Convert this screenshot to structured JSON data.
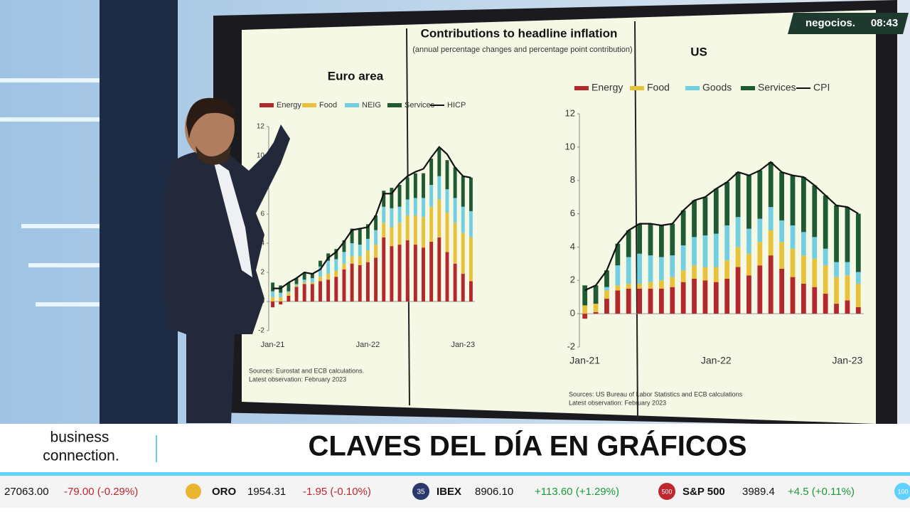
{
  "channel": {
    "brand": "negocios.",
    "time": "08:43"
  },
  "screen": {
    "title": "Contributions to headline inflation",
    "subtitle": "(annual percentage changes and percentage point contribution)"
  },
  "chart_data": [
    {
      "type": "combo",
      "title": "Euro area",
      "categories": [
        "Jan-21",
        null,
        null,
        null,
        null,
        null,
        null,
        null,
        null,
        null,
        null,
        null,
        "Jan-22",
        null,
        null,
        null,
        null,
        null,
        null,
        null,
        null,
        null,
        null,
        null,
        "Jan-23",
        null
      ],
      "series": [
        {
          "name": "Energy",
          "kind": "bar",
          "color": "#b3282d",
          "values": [
            -0.4,
            -0.2,
            0.4,
            1.0,
            1.2,
            1.2,
            1.4,
            1.5,
            1.7,
            2.2,
            2.6,
            2.5,
            2.7,
            3.0,
            4.4,
            3.8,
            3.9,
            4.2,
            3.9,
            3.7,
            4.1,
            4.4,
            3.4,
            2.6,
            1.9,
            1.4
          ]
        },
        {
          "name": "Food",
          "kind": "bar",
          "color": "#e9c23c",
          "values": [
            0.3,
            0.3,
            0.2,
            0.1,
            0.1,
            0.1,
            0.3,
            0.4,
            0.4,
            0.4,
            0.5,
            0.6,
            0.8,
            0.9,
            1.0,
            1.3,
            1.5,
            1.7,
            2.0,
            2.1,
            2.4,
            2.6,
            2.7,
            2.8,
            2.8,
            3.0
          ]
        },
        {
          "name": "NEIG",
          "kind": "bar",
          "color": "#72cfe2",
          "values": [
            0.4,
            0.3,
            0.1,
            0.1,
            0.2,
            0.3,
            0.7,
            0.9,
            0.8,
            0.8,
            0.9,
            0.8,
            0.8,
            1.0,
            1.1,
            1.3,
            1.1,
            1.1,
            1.2,
            1.3,
            1.5,
            1.6,
            1.6,
            1.7,
            1.8,
            1.8
          ]
        },
        {
          "name": "Services",
          "kind": "bar",
          "color": "#1f5a34",
          "values": [
            0.6,
            0.5,
            0.6,
            0.4,
            0.5,
            0.3,
            0.4,
            0.5,
            0.7,
            0.8,
            1.0,
            1.1,
            1.0,
            1.0,
            1.1,
            1.4,
            1.5,
            1.5,
            1.7,
            1.7,
            1.8,
            1.9,
            2.0,
            2.1,
            2.1,
            2.3
          ]
        },
        {
          "name": "HICP",
          "kind": "line",
          "color": "#111111",
          "values": [
            0.9,
            0.9,
            1.3,
            1.6,
            2.0,
            1.9,
            2.2,
            3.0,
            3.4,
            4.1,
            4.9,
            5.0,
            5.1,
            5.9,
            7.4,
            7.4,
            8.1,
            8.6,
            8.9,
            9.1,
            9.9,
            10.6,
            10.1,
            9.2,
            8.6,
            8.5
          ]
        }
      ],
      "ylim": [
        -2,
        12
      ],
      "yticks": [
        -2,
        0,
        2,
        4,
        6,
        8,
        10,
        12
      ],
      "notes": [
        "Sources: Eurostat and ECB calculations.",
        "Latest observation: February 2023"
      ]
    },
    {
      "type": "combo",
      "title": "US",
      "categories": [
        "Jan-21",
        null,
        null,
        null,
        null,
        null,
        null,
        null,
        null,
        null,
        null,
        null,
        "Jan-22",
        null,
        null,
        null,
        null,
        null,
        null,
        null,
        null,
        null,
        null,
        null,
        "Jan-23",
        null
      ],
      "series": [
        {
          "name": "Energy",
          "kind": "bar",
          "color": "#b3282d",
          "values": [
            -0.3,
            0.1,
            0.9,
            1.4,
            1.5,
            1.5,
            1.5,
            1.5,
            1.6,
            1.9,
            2.1,
            2.0,
            1.9,
            2.1,
            2.8,
            2.3,
            2.9,
            3.5,
            2.7,
            2.2,
            1.8,
            1.6,
            1.2,
            0.6,
            0.8,
            0.4
          ]
        },
        {
          "name": "Food",
          "kind": "bar",
          "color": "#e9c23c",
          "values": [
            0.5,
            0.5,
            0.5,
            0.3,
            0.3,
            0.3,
            0.4,
            0.5,
            0.6,
            0.7,
            0.8,
            0.8,
            0.9,
            1.1,
            1.2,
            1.3,
            1.4,
            1.5,
            1.6,
            1.7,
            1.7,
            1.7,
            1.7,
            1.6,
            1.5,
            1.4
          ]
        },
        {
          "name": "Goods",
          "kind": "bar",
          "color": "#72cfe2",
          "values": [
            0.0,
            0.0,
            0.2,
            1.2,
            1.6,
            1.8,
            1.6,
            1.4,
            1.3,
            1.5,
            1.7,
            1.9,
            2.0,
            2.1,
            1.8,
            1.5,
            1.4,
            1.4,
            1.3,
            1.4,
            1.4,
            1.3,
            1.0,
            0.9,
            0.8,
            0.7
          ]
        },
        {
          "name": "Services",
          "kind": "bar",
          "color": "#1f5a34",
          "values": [
            1.2,
            1.1,
            1.0,
            1.3,
            1.6,
            1.8,
            1.9,
            1.9,
            1.9,
            2.1,
            2.2,
            2.3,
            2.7,
            2.6,
            2.7,
            3.2,
            2.9,
            2.7,
            2.9,
            3.0,
            3.3,
            3.1,
            3.2,
            3.4,
            3.3,
            3.5
          ]
        },
        {
          "name": "CPI",
          "kind": "line",
          "color": "#111111",
          "values": [
            1.4,
            1.7,
            2.6,
            4.2,
            5.0,
            5.4,
            5.4,
            5.3,
            5.4,
            6.2,
            6.8,
            7.0,
            7.5,
            7.9,
            8.5,
            8.3,
            8.6,
            9.1,
            8.5,
            8.3,
            8.2,
            7.7,
            7.1,
            6.5,
            6.4,
            6.0
          ]
        }
      ],
      "ylim": [
        -2,
        12
      ],
      "yticks": [
        -2,
        0,
        2,
        4,
        6,
        8,
        10,
        12
      ],
      "notes": [
        "Sources: US Bureau of Labor Statistics and ECB calculations",
        "Latest observation: February 2023"
      ]
    }
  ],
  "banner": {
    "show": [
      "business",
      "connection."
    ],
    "headline": "CLAVES DEL DÍA EN GRÁFICOS"
  },
  "ticker": {
    "items": [
      {
        "value": "27063.00",
        "change": "-79.00 (-0.29%)"
      },
      {
        "name": "ORO",
        "value": "1954.31",
        "change": "-1.95 (-0.10%)"
      },
      {
        "badge": "35",
        "name": "IBEX",
        "value": "8906.10",
        "change": "+113.60 (+1.29%)"
      },
      {
        "badge": "500",
        "name": "S&P 500",
        "value": "3989.4",
        "change": "+4.5 (+0.11%)"
      },
      {
        "badge": "100"
      }
    ]
  }
}
